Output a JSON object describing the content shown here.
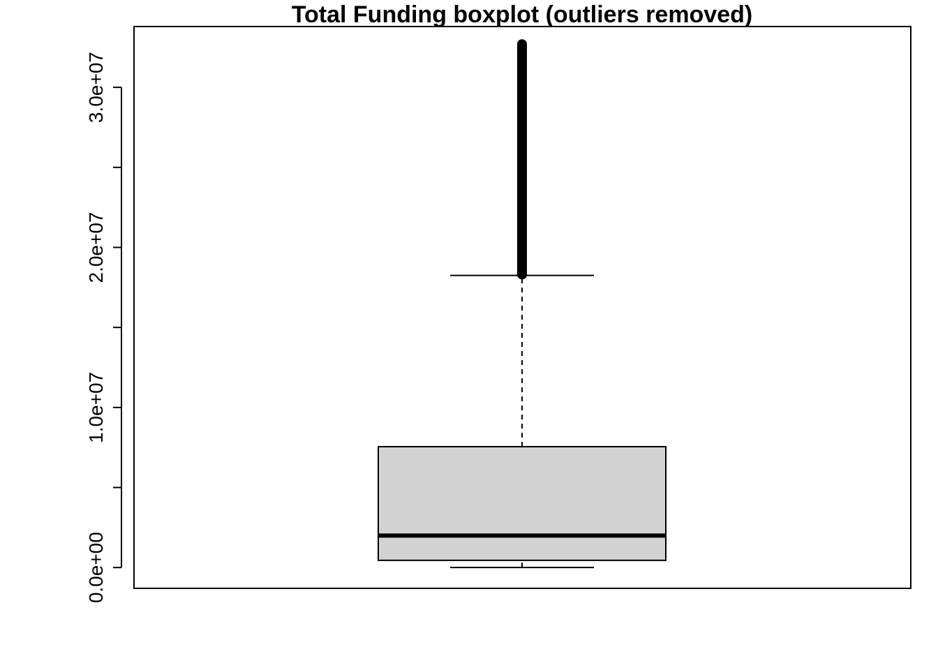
{
  "chart_data": {
    "type": "boxplot",
    "title": "Total Funding boxplot (outliers removed)",
    "xlabel": "",
    "ylabel": "",
    "ylim": [
      -1300000,
      33800000
    ],
    "y_tick_values": [
      0,
      5000000,
      10000000,
      15000000,
      20000000,
      25000000,
      30000000,
      35000000
    ],
    "y_tick_labels": [
      {
        "value": 0,
        "label": "0.0e+00"
      },
      {
        "value": 10000000,
        "label": "1.0e+07"
      },
      {
        "value": 20000000,
        "label": "2.0e+07"
      },
      {
        "value": 30000000,
        "label": "3.0e+07"
      }
    ],
    "grid": false,
    "box": {
      "min": 0,
      "q1": 450000,
      "median": 2000000,
      "q3": 7550000,
      "whisker_high": 18250000,
      "outliers_low": 18300000,
      "outliers_high": 32700000
    },
    "colors": {
      "box_fill": "#d3d3d3",
      "line": "#000000"
    }
  }
}
